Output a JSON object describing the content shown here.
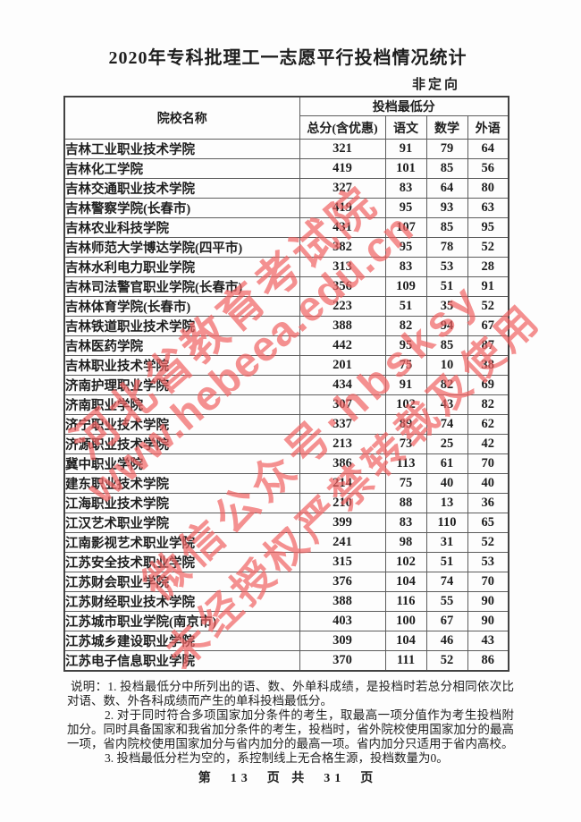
{
  "page": {
    "title": "2020年专科批理工一志愿平行投档情况统计",
    "subtitle": "非定向",
    "pagination": "第  13  页 共  31  页"
  },
  "table": {
    "name_header": "院校名称",
    "group_header": "投档最低分",
    "sub_headers": [
      "总分(含优惠)",
      "语文",
      "数学",
      "外语"
    ],
    "rows": [
      {
        "name": "吉林工业职业技术学院",
        "total": "321",
        "chinese": "91",
        "math": "79",
        "foreign": "64"
      },
      {
        "name": "吉林化工学院",
        "total": "419",
        "chinese": "101",
        "math": "85",
        "foreign": "56"
      },
      {
        "name": "吉林交通职业技术学院",
        "total": "327",
        "chinese": "83",
        "math": "64",
        "foreign": "80"
      },
      {
        "name": "吉林警察学院(长春市)",
        "total": "419",
        "chinese": "95",
        "math": "93",
        "foreign": "63"
      },
      {
        "name": "吉林农业科技学院",
        "total": "431",
        "chinese": "107",
        "math": "85",
        "foreign": "95"
      },
      {
        "name": "吉林师范大学博达学院(四平市)",
        "total": "382",
        "chinese": "95",
        "math": "78",
        "foreign": "52"
      },
      {
        "name": "吉林水利电力职业学院",
        "total": "313",
        "chinese": "83",
        "math": "53",
        "foreign": "28"
      },
      {
        "name": "吉林司法警官职业学院(长春市)",
        "total": "356",
        "chinese": "109",
        "math": "51",
        "foreign": "91"
      },
      {
        "name": "吉林体育学院(长春市)",
        "total": "223",
        "chinese": "51",
        "math": "35",
        "foreign": "52"
      },
      {
        "name": "吉林铁道职业技术学院",
        "total": "388",
        "chinese": "82",
        "math": "94",
        "foreign": "67"
      },
      {
        "name": "吉林医药学院",
        "total": "442",
        "chinese": "95",
        "math": "85",
        "foreign": "87"
      },
      {
        "name": "吉林职业技术学院",
        "total": "201",
        "chinese": "75",
        "math": "10",
        "foreign": "38"
      },
      {
        "name": "济南护理职业学院",
        "total": "434",
        "chinese": "91",
        "math": "82",
        "foreign": "69"
      },
      {
        "name": "济南职业学院",
        "total": "307",
        "chinese": "102",
        "math": "43",
        "foreign": "82"
      },
      {
        "name": "济宁职业技术学院",
        "total": "337",
        "chinese": "89",
        "math": "74",
        "foreign": "62"
      },
      {
        "name": "济源职业技术学院",
        "total": "213",
        "chinese": "73",
        "math": "25",
        "foreign": "42"
      },
      {
        "name": "冀中职业学院",
        "total": "386",
        "chinese": "113",
        "math": "61",
        "foreign": "70"
      },
      {
        "name": "建东职业技术学院",
        "total": "214",
        "chinese": "75",
        "math": "40",
        "foreign": "40"
      },
      {
        "name": "江海职业技术学院",
        "total": "210",
        "chinese": "88",
        "math": "13",
        "foreign": "36"
      },
      {
        "name": "江汉艺术职业学院",
        "total": "399",
        "chinese": "83",
        "math": "110",
        "foreign": "65"
      },
      {
        "name": "江南影视艺术职业学院",
        "total": "241",
        "chinese": "98",
        "math": "31",
        "foreign": "52"
      },
      {
        "name": "江苏安全技术职业学院",
        "total": "315",
        "chinese": "102",
        "math": "51",
        "foreign": "53"
      },
      {
        "name": "江苏财会职业学院",
        "total": "376",
        "chinese": "104",
        "math": "74",
        "foreign": "70"
      },
      {
        "name": "江苏财经职业技术学院",
        "total": "388",
        "chinese": "116",
        "math": "55",
        "foreign": "90"
      },
      {
        "name": "江苏城市职业学院(南京市)",
        "total": "403",
        "chinese": "100",
        "math": "67",
        "foreign": "90"
      },
      {
        "name": "江苏城乡建设职业学院",
        "total": "309",
        "chinese": "104",
        "math": "46",
        "foreign": "43"
      },
      {
        "name": "江苏电子信息职业学院",
        "total": "370",
        "chinese": "111",
        "math": "52",
        "foreign": "86"
      }
    ]
  },
  "notes": {
    "p1": "说明：1. 投档最低分中所列出的语、数、外单科成绩，是投档时若总分相同依次比对语、数、外各科成绩而产生的单科投档最低分。",
    "p2": "2. 对于同时符合多项国家加分条件的考生，取最高一项分值作为考生投档附加分。同时具备国家和我省加分条件的考生，投档时，省外院校使用国家加分的最高一项，省内院校使用国家加分与省内加分的最高一项。省内加分只适用于省内高校。",
    "p3": "3. 投档最低分栏为空的，系控制线上无合格生源，投档数量为0。"
  },
  "watermark": {
    "color": "#f06161",
    "lines": [
      "河北省教育考试院",
      "www.hebeea.edu.cn",
      "微信公众号·hbsksy",
      "未经授权严禁转载及使用"
    ]
  }
}
